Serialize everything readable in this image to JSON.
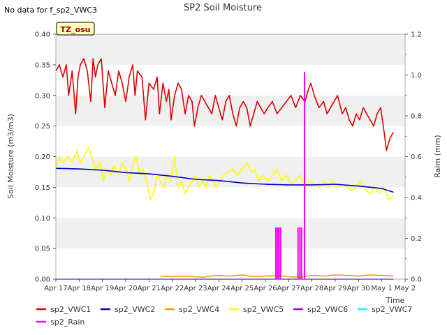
{
  "chart_data": {
    "type": "line",
    "title": "SP2 Soil Moisture",
    "note": "No data for f_sp2_VWC3",
    "badge": "TZ_osu",
    "xlabel": "Time",
    "ylabel": "Soil Moisture (m3/m3)",
    "y2label": "Raim (mm)",
    "xlim": [
      0,
      15
    ],
    "ylim": [
      0,
      0.4
    ],
    "y2lim": [
      0,
      1.2
    ],
    "x_ticks": [
      0,
      1,
      2,
      3,
      4,
      5,
      6,
      7,
      8,
      9,
      10,
      11,
      12,
      13,
      14,
      15
    ],
    "x_tick_labels": [
      "Apr 17",
      "Apr 18",
      "Apr 19",
      "Apr 20",
      "Apr 21",
      "Apr 22",
      "Apr 23",
      "Apr 24",
      "Apr 25",
      "Apr 26",
      "Apr 27",
      "Apr 28",
      "Apr 29",
      "Apr 30",
      "May 1",
      "May 2"
    ],
    "y_ticks": [
      "0.00",
      "0.05",
      "0.10",
      "0.15",
      "0.20",
      "0.25",
      "0.30",
      "0.35",
      "0.40"
    ],
    "y2_ticks": [
      "0.0",
      "0.2",
      "0.4",
      "0.6",
      "0.8",
      "1.0",
      "1.2"
    ],
    "grid": "alternating horizontal bands",
    "legend": "bottom",
    "series": [
      {
        "name": "sp2_VWC1",
        "color": "#dd0000",
        "axis": "left",
        "x": [
          0.0,
          0.15,
          0.3,
          0.45,
          0.55,
          0.7,
          0.85,
          0.95,
          1.05,
          1.2,
          1.35,
          1.5,
          1.6,
          1.7,
          1.8,
          1.95,
          2.1,
          2.25,
          2.4,
          2.55,
          2.7,
          2.85,
          3.0,
          3.15,
          3.3,
          3.4,
          3.5,
          3.7,
          3.85,
          4.0,
          4.2,
          4.35,
          4.45,
          4.6,
          4.75,
          4.85,
          4.95,
          5.1,
          5.25,
          5.4,
          5.55,
          5.7,
          5.85,
          5.95,
          6.1,
          6.25,
          6.4,
          6.55,
          6.7,
          6.85,
          7.0,
          7.15,
          7.3,
          7.45,
          7.6,
          7.75,
          7.9,
          8.05,
          8.2,
          8.35,
          8.5,
          8.65,
          8.8,
          8.95,
          9.1,
          9.3,
          9.5,
          9.7,
          9.9,
          10.1,
          10.3,
          10.5,
          10.7,
          10.85,
          10.95,
          11.1,
          11.3,
          11.5,
          11.65,
          11.8,
          11.95,
          12.1,
          12.3,
          12.45,
          12.6,
          12.75,
          12.9,
          13.05,
          13.2,
          13.35,
          13.5,
          13.65,
          13.8,
          13.95,
          14.1,
          14.2,
          14.35,
          14.5
        ],
        "y": [
          0.34,
          0.35,
          0.33,
          0.35,
          0.3,
          0.34,
          0.27,
          0.33,
          0.35,
          0.36,
          0.34,
          0.29,
          0.36,
          0.33,
          0.35,
          0.36,
          0.28,
          0.34,
          0.32,
          0.3,
          0.34,
          0.32,
          0.29,
          0.33,
          0.35,
          0.3,
          0.34,
          0.33,
          0.26,
          0.32,
          0.31,
          0.33,
          0.27,
          0.32,
          0.29,
          0.31,
          0.26,
          0.3,
          0.32,
          0.31,
          0.27,
          0.3,
          0.29,
          0.25,
          0.28,
          0.3,
          0.29,
          0.28,
          0.27,
          0.3,
          0.28,
          0.26,
          0.29,
          0.3,
          0.27,
          0.25,
          0.28,
          0.29,
          0.28,
          0.25,
          0.27,
          0.29,
          0.28,
          0.27,
          0.28,
          0.29,
          0.27,
          0.28,
          0.29,
          0.3,
          0.28,
          0.3,
          0.29,
          0.31,
          0.32,
          0.3,
          0.28,
          0.29,
          0.27,
          0.28,
          0.29,
          0.3,
          0.27,
          0.28,
          0.26,
          0.25,
          0.27,
          0.26,
          0.28,
          0.27,
          0.26,
          0.25,
          0.27,
          0.28,
          0.24,
          0.21,
          0.23,
          0.24
        ]
      },
      {
        "name": "sp2_VWC2",
        "color": "#0000cc",
        "axis": "left",
        "x": [
          0,
          1,
          2,
          3,
          4,
          5,
          6,
          7,
          8,
          9,
          10,
          11,
          12,
          13,
          14,
          14.5
        ],
        "y": [
          0.181,
          0.18,
          0.178,
          0.174,
          0.172,
          0.168,
          0.163,
          0.161,
          0.157,
          0.155,
          0.154,
          0.154,
          0.155,
          0.152,
          0.148,
          0.142
        ]
      },
      {
        "name": "sp2_VWC4",
        "color": "#ff9900",
        "axis": "left",
        "x": [
          4.5,
          5,
          5.5,
          6,
          6.3,
          6.6,
          7,
          7.5,
          8,
          8.5,
          9,
          9.5,
          10,
          10.5,
          11,
          11.5,
          12,
          12.5,
          13,
          13.5,
          14,
          14.5
        ],
        "y": [
          0.005,
          0.004,
          0.005,
          0.004,
          0.003,
          0.005,
          0.006,
          0.005,
          0.007,
          0.004,
          0.005,
          0.006,
          0.004,
          0.003,
          0.006,
          0.005,
          0.007,
          0.006,
          0.005,
          0.007,
          0.006,
          0.005
        ]
      },
      {
        "name": "sp2_VWC5",
        "color": "#ffff00",
        "axis": "left",
        "x": [
          0.0,
          0.15,
          0.3,
          0.5,
          0.7,
          0.9,
          1.05,
          1.2,
          1.4,
          1.55,
          1.7,
          1.9,
          2.05,
          2.2,
          2.35,
          2.5,
          2.7,
          2.85,
          3.0,
          3.15,
          3.3,
          3.45,
          3.6,
          3.75,
          3.9,
          4.05,
          4.2,
          4.35,
          4.5,
          4.65,
          4.8,
          4.95,
          5.1,
          5.25,
          5.4,
          5.55,
          5.7,
          5.85,
          6.0,
          6.15,
          6.3,
          6.45,
          6.6,
          6.75,
          6.9,
          7.05,
          7.2,
          7.4,
          7.6,
          7.8,
          8.0,
          8.2,
          8.4,
          8.55,
          8.7,
          8.9,
          9.1,
          9.3,
          9.5,
          9.7,
          9.9,
          10.1,
          10.3,
          10.5,
          10.7,
          10.9,
          11.1,
          11.3,
          11.5,
          11.7,
          11.9,
          12.1,
          12.3,
          12.5,
          12.7,
          12.9,
          13.1,
          13.3,
          13.5,
          13.7,
          13.9,
          14.05,
          14.2,
          14.3,
          14.5
        ],
        "y": [
          0.18,
          0.2,
          0.19,
          0.2,
          0.19,
          0.21,
          0.19,
          0.2,
          0.215,
          0.2,
          0.18,
          0.19,
          0.16,
          0.18,
          0.17,
          0.185,
          0.17,
          0.19,
          0.18,
          0.16,
          0.185,
          0.2,
          0.17,
          0.18,
          0.16,
          0.13,
          0.14,
          0.17,
          0.16,
          0.15,
          0.17,
          0.16,
          0.2,
          0.15,
          0.16,
          0.14,
          0.15,
          0.16,
          0.17,
          0.15,
          0.16,
          0.15,
          0.17,
          0.16,
          0.15,
          0.16,
          0.17,
          0.175,
          0.18,
          0.17,
          0.18,
          0.19,
          0.175,
          0.18,
          0.16,
          0.17,
          0.16,
          0.17,
          0.18,
          0.16,
          0.17,
          0.155,
          0.16,
          0.17,
          0.15,
          0.16,
          0.155,
          0.15,
          0.16,
          0.15,
          0.16,
          0.15,
          0.155,
          0.15,
          0.145,
          0.15,
          0.16,
          0.145,
          0.14,
          0.15,
          0.14,
          0.15,
          0.14,
          0.13,
          0.135
        ]
      },
      {
        "name": "sp2_VWC6",
        "color": "#9900ff",
        "axis": "left",
        "x": [
          0,
          14.5
        ],
        "y": [
          0,
          0
        ]
      },
      {
        "name": "sp2_VWC7",
        "color": "#00ffff",
        "axis": "left",
        "x": [
          0,
          14.5
        ],
        "y": [
          0,
          0
        ]
      },
      {
        "name": "sp2_Rain",
        "color": "#ff00ff",
        "axis": "right",
        "x": [
          9.45,
          9.52,
          9.58,
          9.65,
          10.4,
          10.48,
          10.55,
          10.68
        ],
        "y": [
          0.254,
          0.254,
          0.254,
          0.254,
          0.254,
          0.254,
          0.254,
          1.016
        ]
      }
    ]
  }
}
